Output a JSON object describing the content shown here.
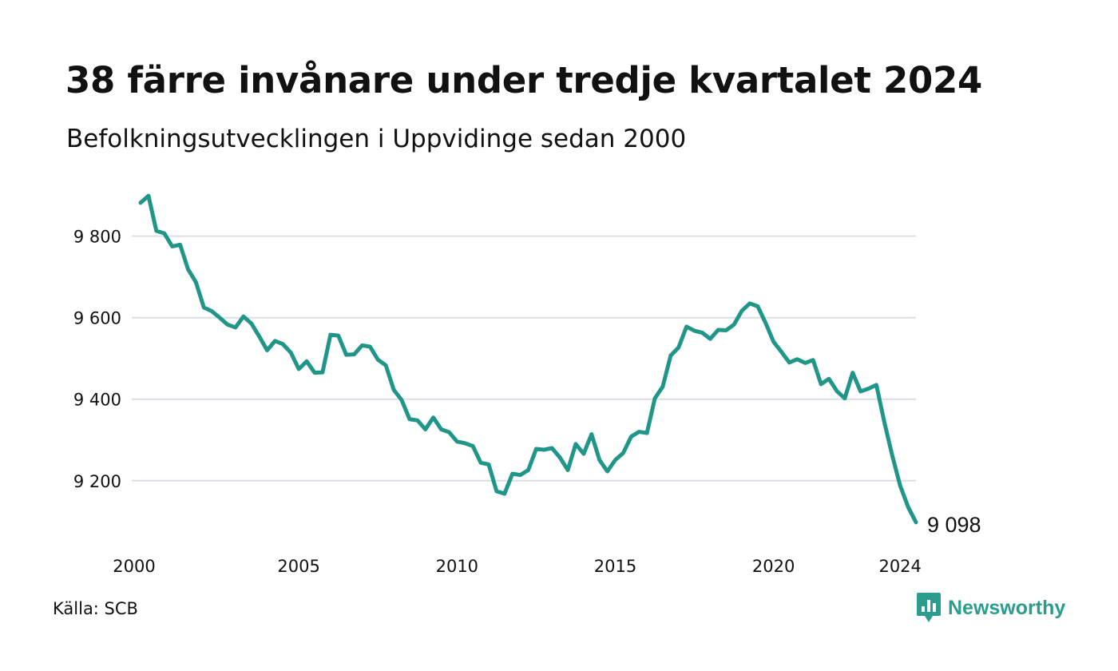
{
  "title": "38 färre invånare under tredje kvartalet 2024",
  "subtitle": "Befolkningsutvecklingen i Uppvidinge sedan 2000",
  "source": "Källa: SCB",
  "brand": {
    "name": "Newsworthy",
    "icon": "newsworthy-logo-icon",
    "color": "#2a9d8f"
  },
  "chart_data": {
    "type": "line",
    "title": "38 färre invånare under tredje kvartalet 2024",
    "subtitle": "Befolkningsutvecklingen i Uppvidinge sedan 2000",
    "xlabel": "",
    "ylabel": "",
    "x_domain": [
      2000,
      2024.5
    ],
    "ylim": [
      9080,
      9915
    ],
    "y_ticks": [
      9200,
      9400,
      9600,
      9800
    ],
    "y_tick_labels": [
      "9 200",
      "9 400",
      "9 600",
      "9 800"
    ],
    "x_ticks": [
      2000,
      2005,
      2010,
      2015,
      2020,
      2024
    ],
    "x_tick_labels": [
      "2000",
      "2005",
      "2010",
      "2015",
      "2020",
      "2024"
    ],
    "grid": "horizontal",
    "line_color": "#1f9688",
    "end_label": "9 098",
    "series": [
      {
        "x": [
          2000.0,
          2000.25,
          2000.5,
          2000.75,
          2001.0,
          2001.25,
          2001.5,
          2001.75,
          2002.0,
          2002.25,
          2002.5,
          2002.75,
          2003.0,
          2003.25,
          2003.5,
          2003.75,
          2004.0,
          2004.25,
          2004.5,
          2004.75,
          2005.0,
          2005.25,
          2005.5,
          2005.75,
          2006.0,
          2006.25,
          2006.5,
          2006.75,
          2007.0,
          2007.25,
          2007.5,
          2007.75,
          2008.0,
          2008.25,
          2008.5,
          2008.75,
          2009.0,
          2009.25,
          2009.5,
          2009.75,
          2010.0,
          2010.25,
          2010.5,
          2010.75,
          2011.0,
          2011.25,
          2011.5,
          2011.75,
          2012.0,
          2012.25,
          2012.5,
          2012.75,
          2013.0,
          2013.25,
          2013.5,
          2013.75,
          2014.0,
          2014.25,
          2014.5,
          2014.75,
          2015.0,
          2015.25,
          2015.5,
          2015.75,
          2016.0,
          2016.25,
          2016.5,
          2016.75,
          2017.0,
          2017.25,
          2017.5,
          2017.75,
          2018.0,
          2018.25,
          2018.5,
          2018.75,
          2019.0,
          2019.25,
          2019.5,
          2019.75,
          2020.0,
          2020.25,
          2020.5,
          2020.75,
          2021.0,
          2021.25,
          2021.5,
          2021.75,
          2022.0,
          2022.25,
          2022.5,
          2022.75,
          2023.0,
          2023.25,
          2023.5,
          2023.75,
          2024.0,
          2024.25,
          2024.5
        ],
        "values": [
          9882,
          9899,
          9813,
          9807,
          9775,
          9779,
          9719,
          9687,
          9625,
          9616,
          9600,
          9583,
          9576,
          9603,
          9586,
          9554,
          9520,
          9543,
          9535,
          9514,
          9474,
          9493,
          9465,
          9466,
          9558,
          9556,
          9509,
          9510,
          9532,
          9529,
          9497,
          9483,
          9423,
          9398,
          9351,
          9348,
          9326,
          9355,
          9326,
          9319,
          9296,
          9292,
          9285,
          9244,
          9240,
          9174,
          9168,
          9217,
          9214,
          9226,
          9278,
          9276,
          9280,
          9257,
          9226,
          9290,
          9266,
          9314,
          9251,
          9223,
          9251,
          9268,
          9308,
          9320,
          9317,
          9402,
          9431,
          9507,
          9527,
          9578,
          9568,
          9563,
          9548,
          9570,
          9569,
          9583,
          9617,
          9635,
          9628,
          9587,
          9541,
          9516,
          9490,
          9498,
          9489,
          9496,
          9437,
          9450,
          9420,
          9402,
          9465,
          9419,
          9426,
          9435,
          9344,
          9262,
          9188,
          9136,
          9098
        ]
      }
    ]
  }
}
